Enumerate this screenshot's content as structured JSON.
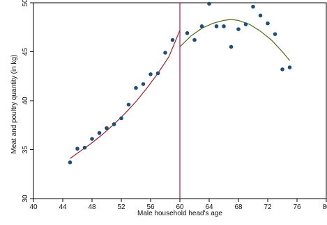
{
  "chart_data": {
    "type": "scatter",
    "xlabel": "Male household head's age",
    "ylabel": "Meat and poultry quantity (in kg)",
    "xlim": [
      40,
      80
    ],
    "ylim": [
      30,
      50
    ],
    "x_ticks": [
      40,
      44,
      48,
      52,
      56,
      60,
      64,
      68,
      72,
      76,
      80
    ],
    "y_ticks": [
      30,
      35,
      40,
      45,
      50
    ],
    "grid": false,
    "legend": "none",
    "points": [
      {
        "x": 45,
        "y": 33.7
      },
      {
        "x": 46,
        "y": 35.1
      },
      {
        "x": 47,
        "y": 35.2
      },
      {
        "x": 48,
        "y": 36.1
      },
      {
        "x": 49,
        "y": 36.7
      },
      {
        "x": 50,
        "y": 37.2
      },
      {
        "x": 51,
        "y": 37.6
      },
      {
        "x": 52,
        "y": 38.2
      },
      {
        "x": 53,
        "y": 39.6
      },
      {
        "x": 54,
        "y": 41.3
      },
      {
        "x": 55,
        "y": 41.7
      },
      {
        "x": 56,
        "y": 42.7
      },
      {
        "x": 57,
        "y": 42.8
      },
      {
        "x": 58,
        "y": 44.9
      },
      {
        "x": 59,
        "y": 46.2
      },
      {
        "x": 61,
        "y": 46.9
      },
      {
        "x": 62,
        "y": 46.2
      },
      {
        "x": 63,
        "y": 47.6
      },
      {
        "x": 64,
        "y": 49.9
      },
      {
        "x": 65,
        "y": 47.6
      },
      {
        "x": 66,
        "y": 47.6
      },
      {
        "x": 67,
        "y": 45.5
      },
      {
        "x": 68,
        "y": 47.3
      },
      {
        "x": 69,
        "y": 47.8
      },
      {
        "x": 70,
        "y": 49.6
      },
      {
        "x": 71,
        "y": 48.7
      },
      {
        "x": 72,
        "y": 47.9
      },
      {
        "x": 73,
        "y": 46.8
      },
      {
        "x": 74,
        "y": 43.2
      },
      {
        "x": 75,
        "y": 43.4
      }
    ],
    "fit_left": {
      "x": [
        45,
        46.5,
        48,
        49.5,
        51,
        52.5,
        54,
        55.5,
        57,
        58.5,
        60
      ],
      "y": [
        34.1,
        34.9,
        35.7,
        36.6,
        37.6,
        38.7,
        39.9,
        41.3,
        42.8,
        44.5,
        47.2
      ]
    },
    "fit_right": {
      "x": [
        60,
        61.5,
        63,
        64.5,
        66,
        67,
        68,
        69.5,
        71,
        72.5,
        74,
        75
      ],
      "y": [
        45.5,
        46.6,
        47.4,
        47.9,
        48.2,
        48.3,
        48.2,
        47.8,
        47.1,
        46.2,
        45.0,
        44.1
      ]
    },
    "cutoff_x": 60,
    "colors": {
      "points": "#1f4e79",
      "fit_left": "#a0222e",
      "fit_right": "#4f6b1e",
      "cutoff": "#c0245c",
      "axis": "#000000"
    }
  }
}
